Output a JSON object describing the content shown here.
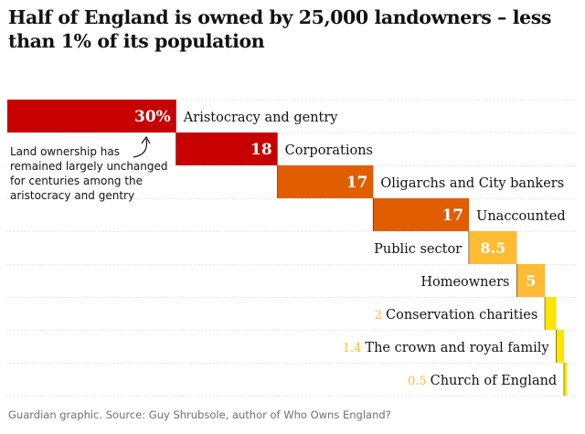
{
  "title": "Half of England is owned by 25,000 landowners – less than 1% of its population",
  "annotation": "Land ownership has remained largely unchanged for centuries among the aristocracy and gentry",
  "footer": "Guardian graphic. Source: Guy Shrubsole, author of Who Owns England?",
  "chart_data": {
    "type": "bar",
    "layout": "waterfall",
    "title": "Half of England is owned by 25,000 landowners – less than 1% of its population",
    "categories": [
      "Aristocracy and gentry",
      "Corporations",
      "Oligarchs and City bankers",
      "Unaccounted",
      "Public sector",
      "Homeowners",
      "Conservation charities",
      "The crown and royal family",
      "Church of England"
    ],
    "values": [
      30,
      18,
      17,
      17,
      8.5,
      5,
      2,
      1.4,
      0.5
    ],
    "value_labels": [
      "30%",
      "18",
      "17",
      "17",
      "8.5",
      "5",
      "2",
      "1.4",
      "0.5"
    ],
    "unit": "%",
    "colors": [
      "#c70000",
      "#c70000",
      "#e05e00",
      "#e05e00",
      "#ffbb33",
      "#ffbb33",
      "#ffe500",
      "#ffe500",
      "#ffe500"
    ],
    "label_colors": {
      "inside_dark": "#ffffff",
      "outside": "#ffbb33"
    },
    "grid": true
  }
}
